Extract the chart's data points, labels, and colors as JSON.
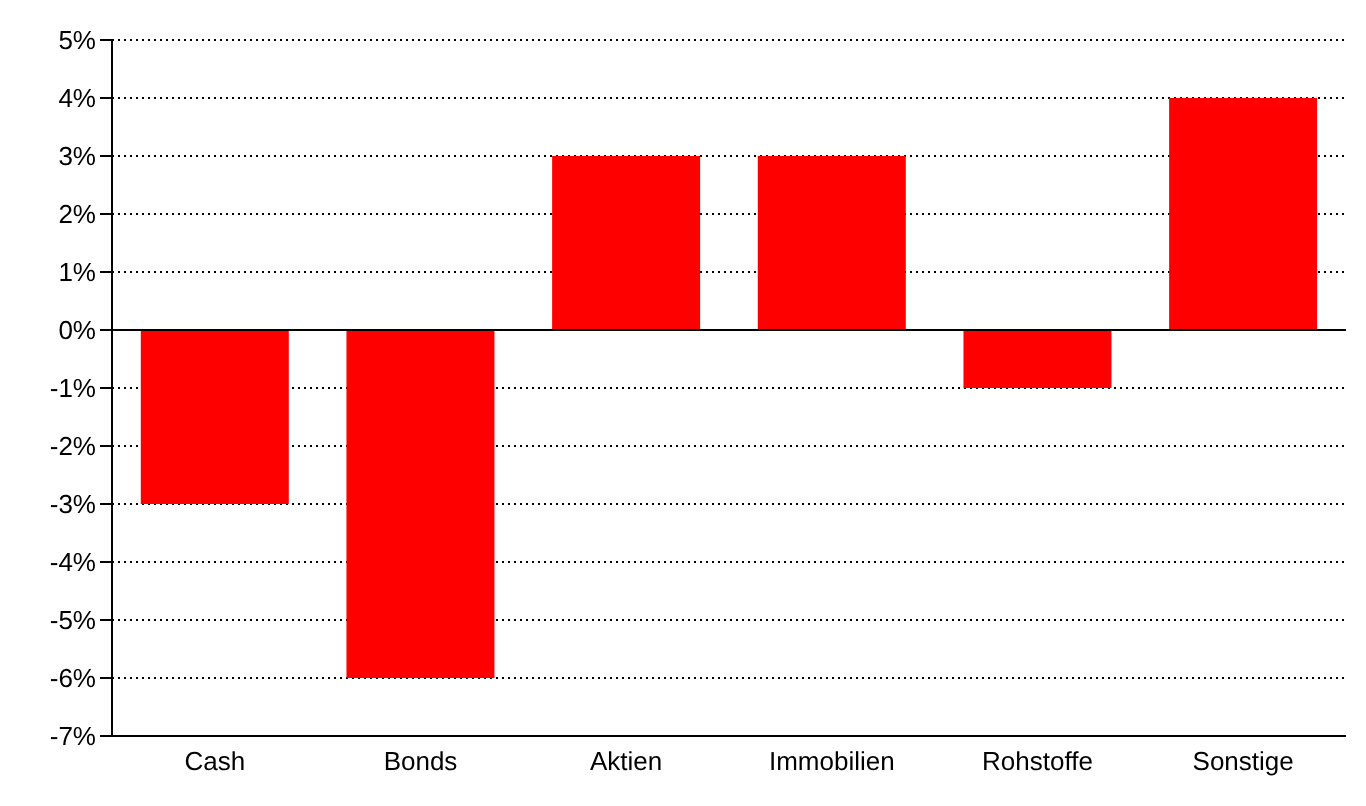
{
  "chart_data": {
    "type": "bar",
    "categories": [
      "Cash",
      "Bonds",
      "Aktien",
      "Immobilien",
      "Rohstoffe",
      "Sonstige"
    ],
    "values": [
      -3,
      -6,
      3,
      3,
      -1,
      4
    ],
    "color": "#ff0000",
    "ylim": [
      -7,
      5
    ],
    "yticks": [
      {
        "value": -7,
        "label": "-7%"
      },
      {
        "value": -6,
        "label": "-6%"
      },
      {
        "value": -5,
        "label": "-5%"
      },
      {
        "value": -4,
        "label": "-4%"
      },
      {
        "value": -3,
        "label": "-3%"
      },
      {
        "value": -2,
        "label": "-2%"
      },
      {
        "value": -1,
        "label": "-1%"
      },
      {
        "value": 0,
        "label": "0%"
      },
      {
        "value": 1,
        "label": "1%"
      },
      {
        "value": 2,
        "label": "2%"
      },
      {
        "value": 3,
        "label": "3%"
      },
      {
        "value": 4,
        "label": "4%"
      },
      {
        "value": 5,
        "label": "5%"
      }
    ],
    "grid": "y"
  }
}
